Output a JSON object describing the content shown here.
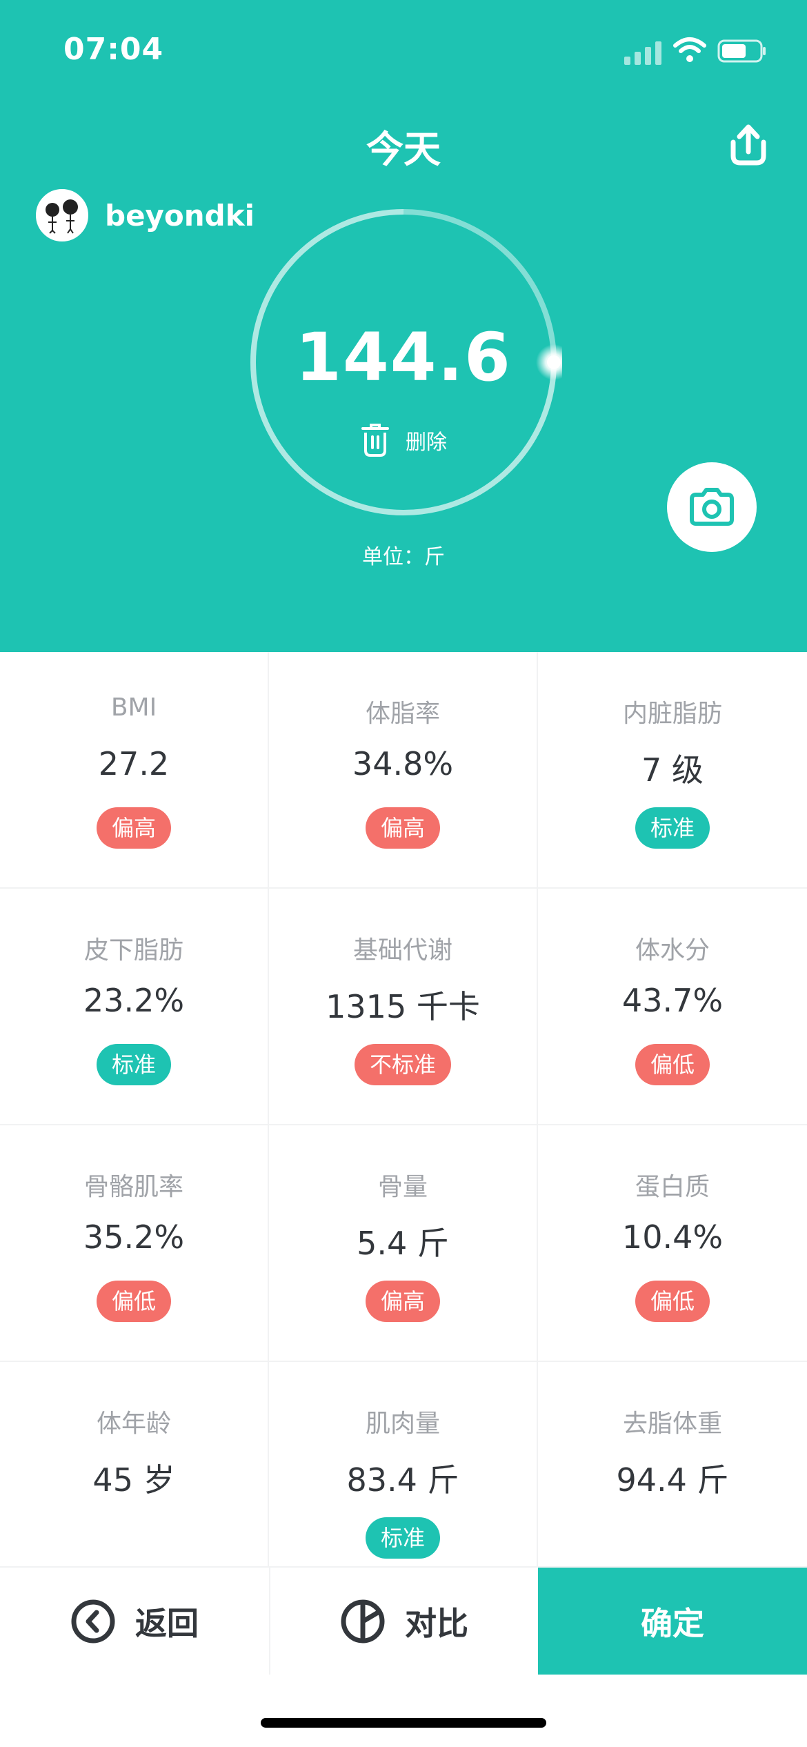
{
  "status_bar": {
    "time": "07:04"
  },
  "header": {
    "title": "今天",
    "username": "beyondki",
    "weight": "144.6",
    "delete_label": "删除",
    "unit": "单位：斤"
  },
  "metrics": [
    {
      "label": "BMI",
      "value": "27.2",
      "badge": "偏高",
      "status": "high"
    },
    {
      "label": "体脂率",
      "value": "34.8%",
      "badge": "偏高",
      "status": "high"
    },
    {
      "label": "内脏脂肪",
      "value": "7 级",
      "badge": "标准",
      "status": "normal"
    },
    {
      "label": "皮下脂肪",
      "value": "23.2%",
      "badge": "标准",
      "status": "normal"
    },
    {
      "label": "基础代谢",
      "value": "1315 千卡",
      "badge": "不标准",
      "status": "high"
    },
    {
      "label": "体水分",
      "value": "43.7%",
      "badge": "偏低",
      "status": "low"
    },
    {
      "label": "骨骼肌率",
      "value": "35.2%",
      "badge": "偏低",
      "status": "low"
    },
    {
      "label": "骨量",
      "value": "5.4 斤",
      "badge": "偏高",
      "status": "high"
    },
    {
      "label": "蛋白质",
      "value": "10.4%",
      "badge": "偏低",
      "status": "low"
    },
    {
      "label": "体年龄",
      "value": "45 岁",
      "badge": "",
      "status": "none"
    },
    {
      "label": "肌肉量",
      "value": "83.4 斤",
      "badge": "标准",
      "status": "normal"
    },
    {
      "label": "去脂体重",
      "value": "94.4 斤",
      "badge": "",
      "status": "none"
    }
  ],
  "bottom_bar": {
    "back_label": "返回",
    "compare_label": "对比",
    "confirm_label": "确定"
  },
  "colors": {
    "accent": "#1ec3b2",
    "warning": "#f4706a",
    "normal": "#1ec3b2"
  }
}
